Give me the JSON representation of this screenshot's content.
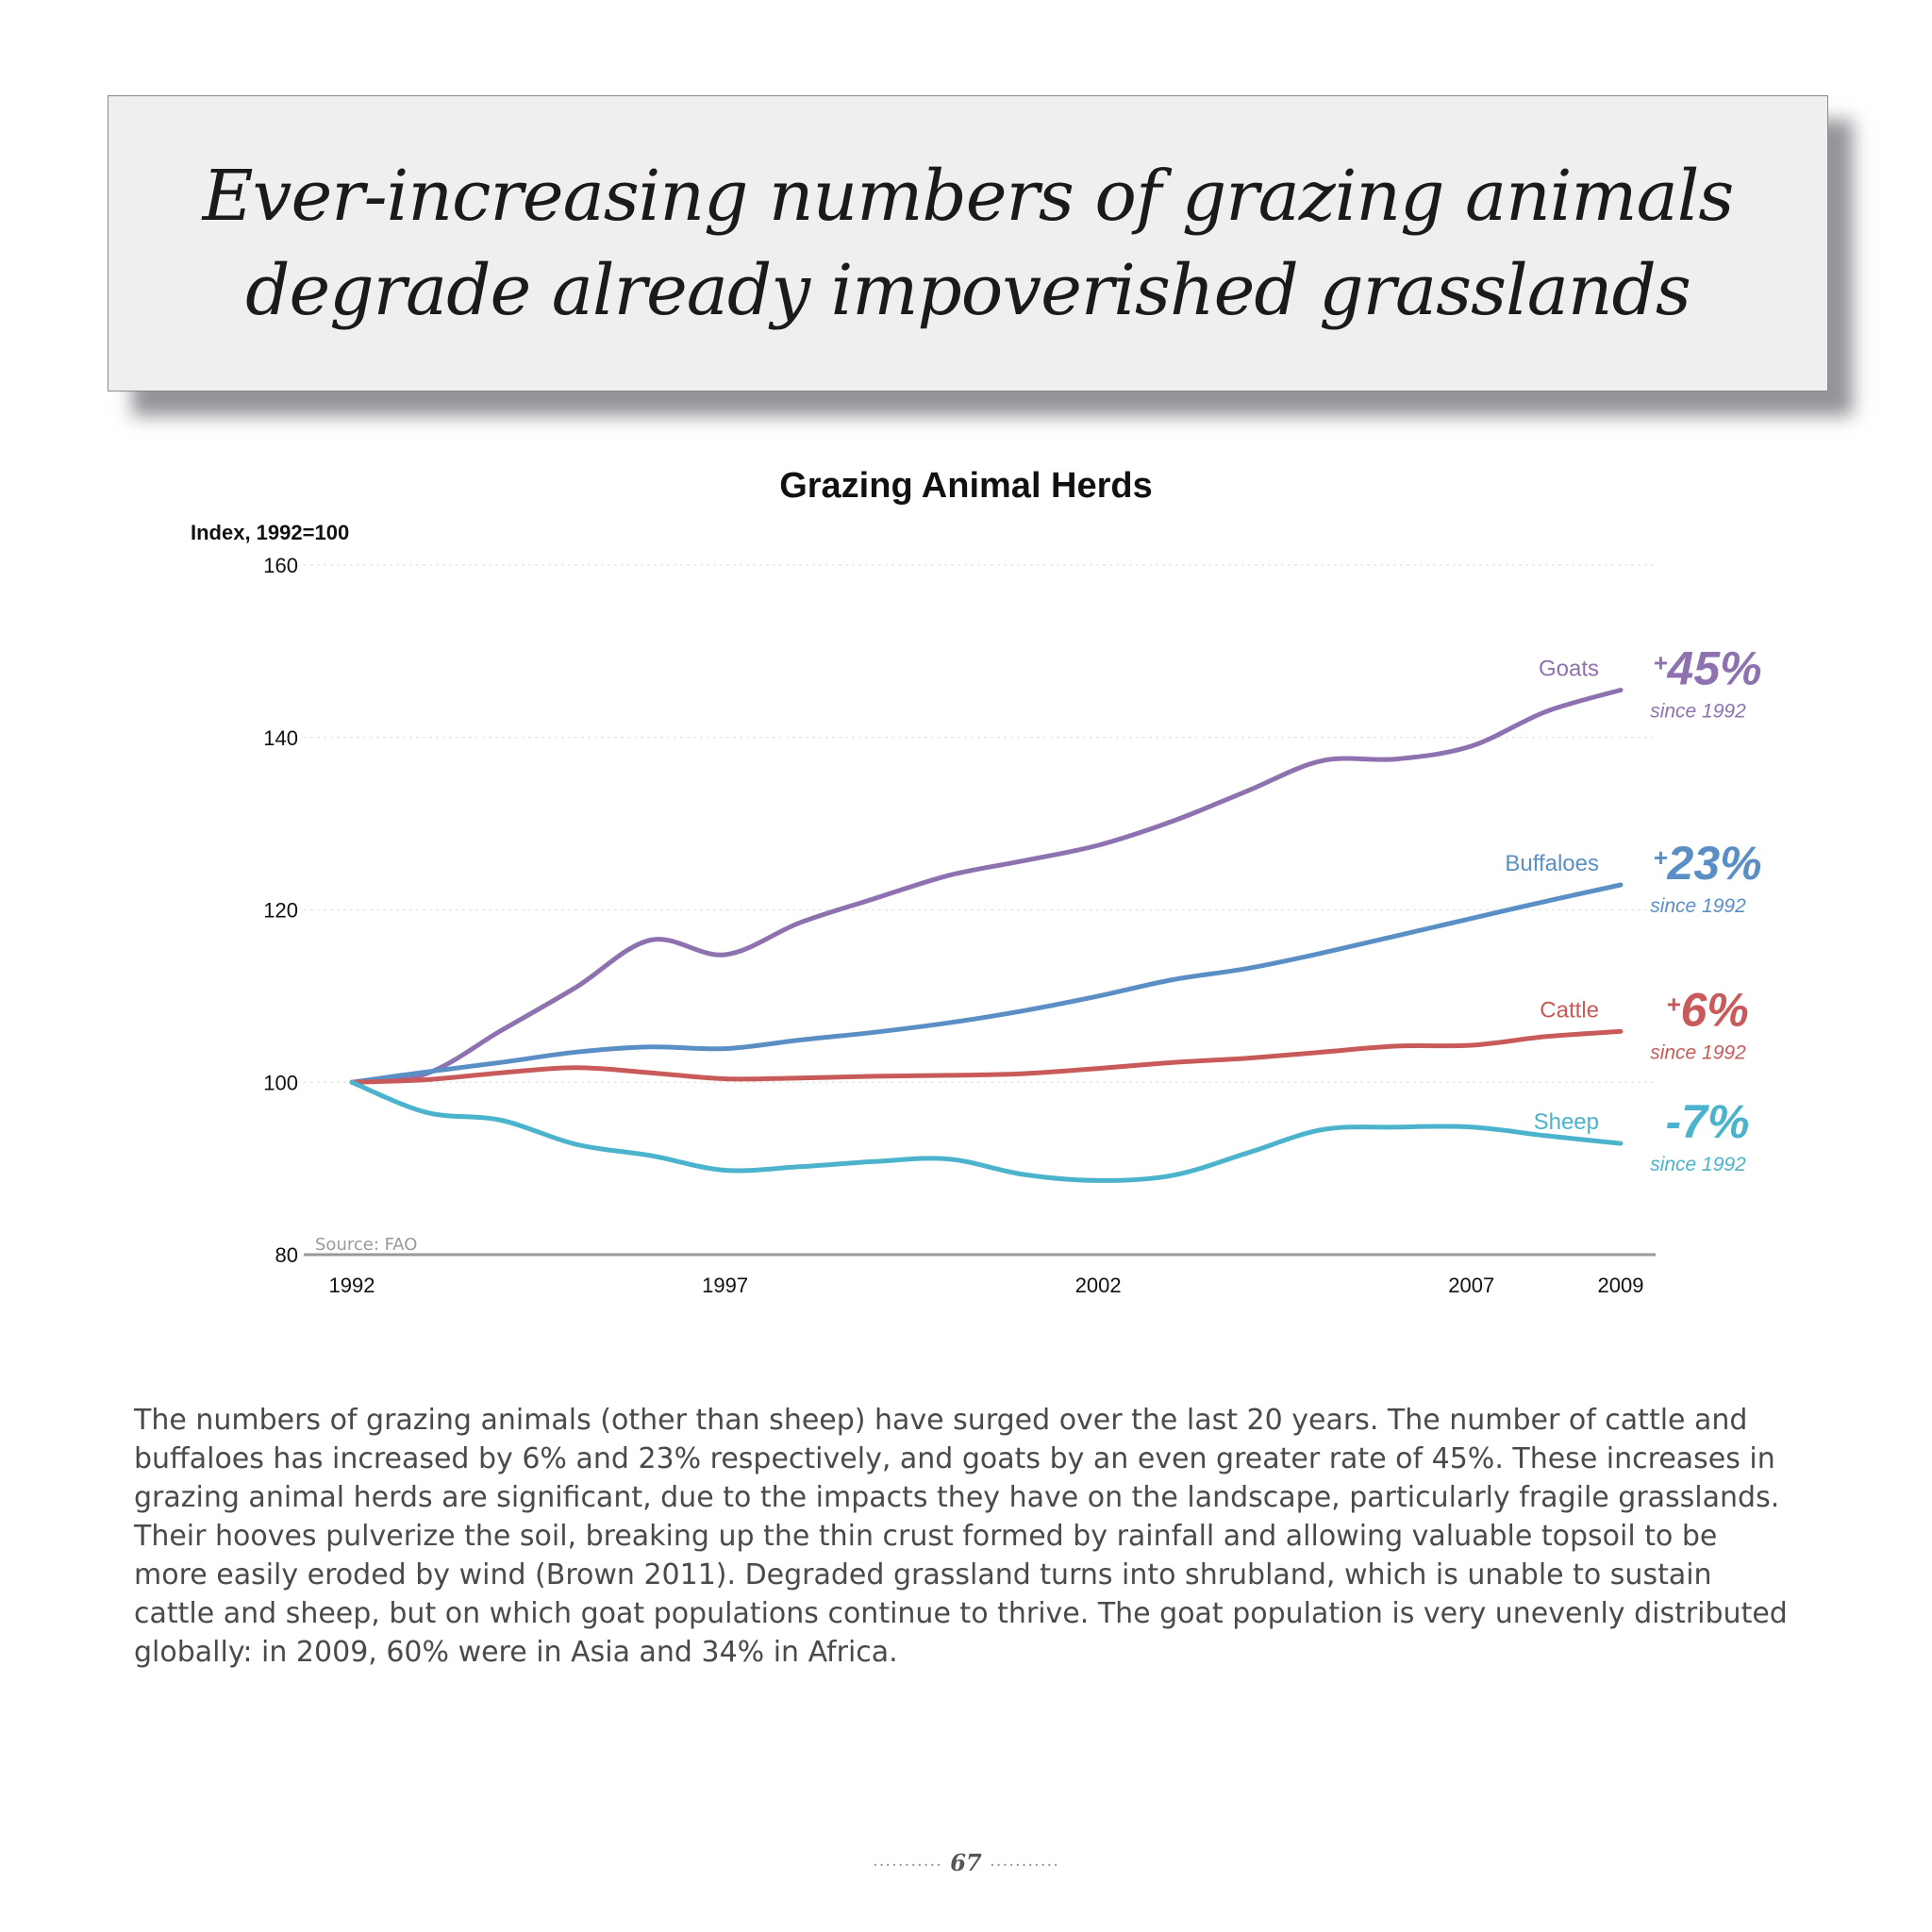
{
  "banner": {
    "title_line1": "Ever-increasing numbers of grazing animals",
    "title_line2": "degrade already impoverished grasslands"
  },
  "chart_data": {
    "type": "line",
    "title": "Grazing Animal Herds",
    "ylabel": "Index, 1992=100",
    "xlabel": "",
    "source": "Source: FAO",
    "ylim": [
      80,
      160
    ],
    "xlim": [
      1992,
      2009
    ],
    "x_ticks": [
      1992,
      1997,
      2002,
      2007,
      2009
    ],
    "y_ticks": [
      80,
      100,
      120,
      140,
      160
    ],
    "grid": true,
    "x": [
      1992,
      1993,
      1994,
      1995,
      1996,
      1997,
      1998,
      1999,
      2000,
      2001,
      2002,
      2003,
      2004,
      2005,
      2006,
      2007,
      2008,
      2009
    ],
    "series": [
      {
        "name": "Goats",
        "color": "#8e72b0",
        "change_sign": "+",
        "change_value": "45%",
        "change_note": "since 1992",
        "values": [
          100,
          101,
          106,
          111,
          116.5,
          114.8,
          118.5,
          121.3,
          124,
          125.7,
          127.5,
          130.3,
          133.8,
          137.3,
          137.5,
          139,
          143,
          145.5
        ]
      },
      {
        "name": "Buffaloes",
        "color": "#5a8fc6",
        "change_sign": "+",
        "change_value": "23%",
        "change_note": "since 1992",
        "values": [
          100,
          101.2,
          102.3,
          103.5,
          104.1,
          103.9,
          104.9,
          105.8,
          106.9,
          108.3,
          110,
          111.9,
          113.2,
          115,
          117,
          119,
          121,
          122.9
        ]
      },
      {
        "name": "Cattle",
        "color": "#c85a5a",
        "change_sign": "+",
        "change_value": "6%",
        "change_note": "since 1992",
        "values": [
          100,
          100.3,
          101.1,
          101.7,
          101.1,
          100.4,
          100.5,
          100.7,
          100.8,
          101,
          101.6,
          102.3,
          102.8,
          103.5,
          104.2,
          104.3,
          105.3,
          105.9
        ]
      },
      {
        "name": "Sheep",
        "color": "#4bb3cc",
        "change_sign": "",
        "change_value": "-7%",
        "change_note": "since 1992",
        "values": [
          100,
          96.5,
          95.6,
          92.8,
          91.5,
          89.8,
          90.2,
          90.8,
          91.1,
          89.3,
          88.6,
          89.2,
          91.8,
          94.5,
          94.8,
          94.8,
          93.8,
          92.9
        ]
      }
    ]
  },
  "body_text": "The numbers of grazing animals (other than sheep) have surged over the last 20 years. The number of cattle and buffaloes has increased by 6% and 23% respectively, and goats by an even greater rate of 45%. These increases in grazing animal herds are significant, due to the impacts they have on the landscape, particularly fragile grasslands. Their hooves pulverize the soil, breaking up the thin crust formed by rainfall and allowing valuable topsoil to be more easily eroded by wind (Brown 2011). Degraded grassland turns into shrubland, which is unable to sustain cattle and sheep, but on which goat populations continue to thrive. The goat population is very unevenly distributed globally: in 2009, 60% were in Asia and 34% in Africa.",
  "page_number": "67"
}
